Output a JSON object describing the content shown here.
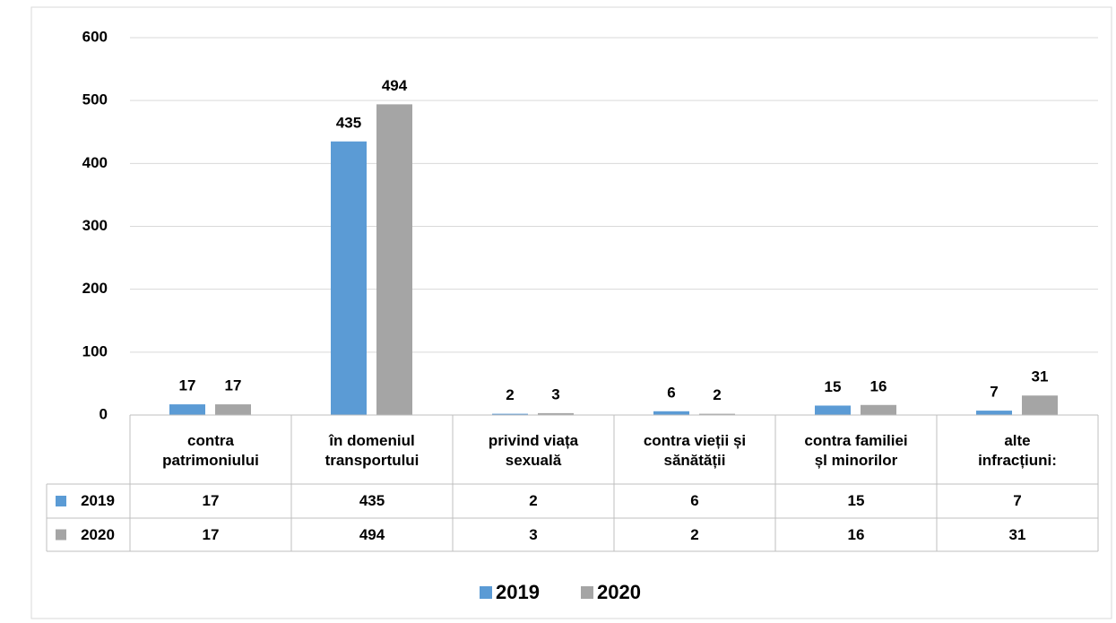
{
  "chart_data": {
    "type": "bar",
    "categories": [
      "contra\npatrimoniului",
      "în domeniul\ntransportului",
      "privind viața\nsexuală",
      "contra vieții și\nsănătății",
      "contra familiei\nșl minorilor",
      "alte\ninfracțiuni:"
    ],
    "series": [
      {
        "name": "2019",
        "color": "#5b9bd5",
        "values": [
          17,
          435,
          2,
          6,
          15,
          7
        ]
      },
      {
        "name": "2020",
        "color": "#a5a5a5",
        "values": [
          17,
          494,
          3,
          2,
          16,
          31
        ]
      }
    ],
    "ylim": [
      0,
      600
    ],
    "yticks": [
      0,
      100,
      200,
      300,
      400,
      500,
      600
    ],
    "grid": true,
    "legend": "bottom",
    "data_table": true
  }
}
